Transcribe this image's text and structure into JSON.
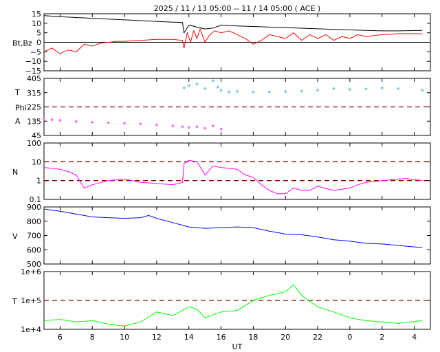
{
  "header": {
    "title": "2025 / 11 / 13   05:00 -- 11 / 14   05:00 ( ACE )"
  },
  "x_axis": {
    "label": "UT",
    "ticks": [
      "6",
      "8",
      "10",
      "12",
      "14",
      "16",
      "18",
      "20",
      "22",
      "0",
      "2",
      "4"
    ]
  },
  "colors": {
    "bt": "#000000",
    "bz": "#ff0000",
    "theta": "#87ceeb",
    "phi": "#ee82ee",
    "density": "#ff00ff",
    "speed": "#0000ff",
    "temperature": "#00ff00",
    "reference": "#8b0000",
    "zero": "#000000"
  },
  "chart_data": [
    {
      "type": "line",
      "ylabel": "Bt,Bz",
      "ylim": [
        -15,
        15
      ],
      "yticks": [
        "15",
        "10",
        "5",
        "0",
        "−5",
        "−10",
        "−15"
      ],
      "zero_line": 0,
      "series": [
        {
          "key": "bt",
          "points": [
            [
              5.0,
              14.0
            ],
            [
              6,
              13.5
            ],
            [
              7,
              13.0
            ],
            [
              8,
              12.6
            ],
            [
              9,
              12.2
            ],
            [
              10,
              11.8
            ],
            [
              11,
              11.4
            ],
            [
              12,
              11.0
            ],
            [
              13,
              10.6
            ],
            [
              13.6,
              10.4
            ],
            [
              13.7,
              5.0
            ],
            [
              14,
              9.0
            ],
            [
              14.5,
              8.0
            ],
            [
              15,
              7.0
            ],
            [
              15.5,
              7.5
            ],
            [
              16,
              9.0
            ],
            [
              17,
              8.6
            ],
            [
              18,
              8.3
            ],
            [
              19,
              8.0
            ],
            [
              20,
              7.7
            ],
            [
              21,
              7.4
            ],
            [
              22,
              7.1
            ],
            [
              23,
              6.8
            ],
            [
              24,
              6.5
            ],
            [
              25,
              6.2
            ],
            [
              26,
              6.0
            ],
            [
              27,
              6.0
            ],
            [
              28.5,
              6.2
            ]
          ]
        },
        {
          "key": "bz",
          "points": [
            [
              5.0,
              -5
            ],
            [
              5.5,
              -3
            ],
            [
              6,
              -6
            ],
            [
              6.5,
              -4
            ],
            [
              7,
              -5
            ],
            [
              7.5,
              -1
            ],
            [
              8,
              -2
            ],
            [
              8.5,
              -0.5
            ],
            [
              9,
              0
            ],
            [
              9.5,
              0.5
            ],
            [
              10,
              0.5
            ],
            [
              11,
              1
            ],
            [
              12,
              1.5
            ],
            [
              13,
              1.5
            ],
            [
              13.6,
              1.0
            ],
            [
              13.7,
              -3
            ],
            [
              13.9,
              5
            ],
            [
              14.1,
              0
            ],
            [
              14.3,
              6
            ],
            [
              14.5,
              2
            ],
            [
              14.7,
              7
            ],
            [
              15,
              0
            ],
            [
              15.3,
              4
            ],
            [
              15.6,
              6
            ],
            [
              16,
              5
            ],
            [
              16.5,
              6
            ],
            [
              17,
              4
            ],
            [
              17.5,
              2
            ],
            [
              18,
              -1
            ],
            [
              18.5,
              1
            ],
            [
              19,
              4
            ],
            [
              20,
              2
            ],
            [
              20.5,
              5
            ],
            [
              21,
              1
            ],
            [
              21.5,
              4
            ],
            [
              22,
              2
            ],
            [
              22.5,
              4
            ],
            [
              23,
              1
            ],
            [
              23.5,
              3
            ],
            [
              24,
              2
            ],
            [
              24.5,
              4
            ],
            [
              25,
              3
            ],
            [
              26,
              4
            ],
            [
              27,
              4.5
            ],
            [
              28.5,
              4.5
            ]
          ]
        }
      ]
    },
    {
      "type": "scatter",
      "ylabels": [
        "T",
        "Phi",
        "A"
      ],
      "ylim": [
        45,
        405
      ],
      "yticks": [
        "405",
        "315",
        "225",
        "135",
        "45"
      ],
      "reference_line": 225,
      "series": [
        {
          "key": "theta",
          "points": [
            [
              13.7,
              345
            ],
            [
              14,
              360
            ],
            [
              14.5,
              370
            ],
            [
              15,
              340
            ],
            [
              15.5,
              390
            ],
            [
              15.8,
              350
            ],
            [
              16,
              330
            ],
            [
              16.5,
              320
            ],
            [
              17,
              322
            ],
            [
              18,
              318
            ],
            [
              19,
              320
            ],
            [
              20,
              322
            ],
            [
              21,
              325
            ],
            [
              22,
              330
            ],
            [
              23,
              340
            ],
            [
              24,
              335
            ],
            [
              25,
              338
            ],
            [
              26,
              345
            ],
            [
              27,
              340
            ],
            [
              28.5,
              330
            ]
          ]
        },
        {
          "key": "phi",
          "points": [
            [
              5.0,
              150
            ],
            [
              5.5,
              145
            ],
            [
              6,
              140
            ],
            [
              7,
              133
            ],
            [
              8,
              128
            ],
            [
              9,
              125
            ],
            [
              10,
              122
            ],
            [
              11,
              118
            ],
            [
              12,
              112
            ],
            [
              13,
              105
            ],
            [
              13.6,
              100
            ],
            [
              14,
              95
            ],
            [
              14.5,
              100
            ],
            [
              15,
              90
            ],
            [
              15.5,
              105
            ],
            [
              16,
              85
            ]
          ]
        }
      ]
    },
    {
      "type": "line",
      "ylabel": "N",
      "scale": "log",
      "ylim": [
        0.1,
        100
      ],
      "yticks": [
        "100",
        "10",
        "1",
        "0.1"
      ],
      "reference_lines": [
        10,
        1
      ],
      "series": [
        {
          "key": "density",
          "points": [
            [
              5.0,
              5
            ],
            [
              6,
              4
            ],
            [
              6.5,
              3
            ],
            [
              7,
              2
            ],
            [
              7.5,
              0.4
            ],
            [
              8,
              0.6
            ],
            [
              9,
              1.0
            ],
            [
              10,
              1.2
            ],
            [
              11,
              0.8
            ],
            [
              12,
              0.7
            ],
            [
              13,
              0.6
            ],
            [
              13.6,
              0.8
            ],
            [
              13.7,
              8
            ],
            [
              14,
              12
            ],
            [
              14.5,
              10
            ],
            [
              15,
              2
            ],
            [
              15.5,
              6
            ],
            [
              16,
              5
            ],
            [
              17,
              4
            ],
            [
              17.5,
              2
            ],
            [
              18,
              1.5
            ],
            [
              18.5,
              0.6
            ],
            [
              19,
              0.3
            ],
            [
              19.5,
              0.2
            ],
            [
              20,
              0.2
            ],
            [
              20.5,
              0.4
            ],
            [
              21,
              0.3
            ],
            [
              21.5,
              0.3
            ],
            [
              22,
              0.5
            ],
            [
              23,
              0.3
            ],
            [
              24,
              0.4
            ],
            [
              24.5,
              0.6
            ],
            [
              25,
              0.8
            ],
            [
              26,
              1.0
            ],
            [
              27,
              1.2
            ],
            [
              27.5,
              1.3
            ],
            [
              28.5,
              1.0
            ]
          ]
        }
      ]
    },
    {
      "type": "line",
      "ylabel": "V",
      "ylim": [
        500,
        900
      ],
      "yticks": [
        "900",
        "800",
        "700",
        "600",
        "500"
      ],
      "series": [
        {
          "key": "speed",
          "points": [
            [
              5.0,
              885
            ],
            [
              6,
              870
            ],
            [
              7,
              850
            ],
            [
              8,
              830
            ],
            [
              9,
              825
            ],
            [
              10,
              820
            ],
            [
              11,
              825
            ],
            [
              11.5,
              840
            ],
            [
              12,
              820
            ],
            [
              13,
              790
            ],
            [
              14,
              760
            ],
            [
              15,
              750
            ],
            [
              16,
              755
            ],
            [
              17,
              760
            ],
            [
              18,
              755
            ],
            [
              19,
              730
            ],
            [
              20,
              710
            ],
            [
              21,
              705
            ],
            [
              22,
              690
            ],
            [
              23,
              670
            ],
            [
              24,
              660
            ],
            [
              25,
              645
            ],
            [
              26,
              640
            ],
            [
              27,
              630
            ],
            [
              28,
              620
            ],
            [
              28.5,
              615
            ]
          ]
        }
      ]
    },
    {
      "type": "line",
      "ylabel": "T",
      "scale": "log",
      "ylim": [
        10000,
        1000000
      ],
      "yticks": [
        "1e+6",
        "1e+5",
        "1e+4"
      ],
      "reference_lines": [
        100000
      ],
      "series": [
        {
          "key": "temperature",
          "points": [
            [
              5.0,
              20000
            ],
            [
              6,
              22000
            ],
            [
              7,
              18000
            ],
            [
              8,
              20000
            ],
            [
              9,
              15000
            ],
            [
              10,
              13000
            ],
            [
              11,
              18000
            ],
            [
              12,
              40000
            ],
            [
              13,
              30000
            ],
            [
              14,
              60000
            ],
            [
              14.5,
              50000
            ],
            [
              15,
              25000
            ],
            [
              16,
              40000
            ],
            [
              17,
              45000
            ],
            [
              18,
              100000
            ],
            [
              19,
              150000
            ],
            [
              20,
              200000
            ],
            [
              20.5,
              350000
            ],
            [
              21,
              150000
            ],
            [
              22,
              60000
            ],
            [
              23,
              40000
            ],
            [
              24,
              25000
            ],
            [
              25,
              20000
            ],
            [
              26,
              18000
            ],
            [
              27,
              16000
            ],
            [
              28.5,
              20000
            ]
          ]
        }
      ]
    }
  ]
}
